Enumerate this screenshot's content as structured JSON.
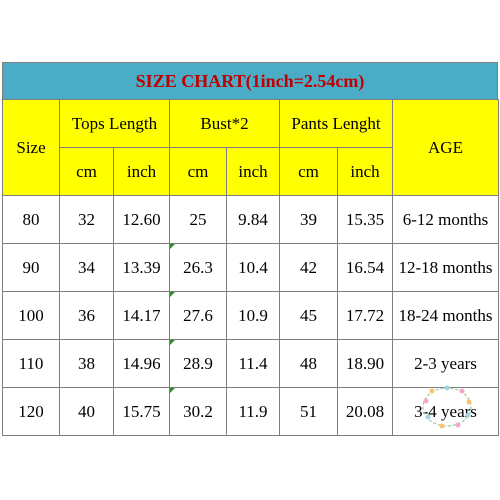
{
  "title": "SIZE CHART(1inch=2.54cm)",
  "headers": {
    "size": "Size",
    "tops_length": "Tops Length",
    "bust": "Bust*2",
    "pants_length": "Pants Lenght",
    "age": "AGE",
    "cm": "cm",
    "inch": "inch"
  },
  "rows": [
    {
      "size": "80",
      "tops_cm": "32",
      "tops_in": "12.60",
      "bust_cm": "25",
      "bust_in": "9.84",
      "pants_cm": "39",
      "pants_in": "15.35",
      "age": "6-12 months"
    },
    {
      "size": "90",
      "tops_cm": "34",
      "tops_in": "13.39",
      "bust_cm": "26.3",
      "bust_in": "10.4",
      "pants_cm": "42",
      "pants_in": "16.54",
      "age": "12-18 months"
    },
    {
      "size": "100",
      "tops_cm": "36",
      "tops_in": "14.17",
      "bust_cm": "27.6",
      "bust_in": "10.9",
      "pants_cm": "45",
      "pants_in": "17.72",
      "age": "18-24 months"
    },
    {
      "size": "110",
      "tops_cm": "38",
      "tops_in": "14.96",
      "bust_cm": "28.9",
      "bust_in": "11.4",
      "pants_cm": "48",
      "pants_in": "18.90",
      "age": "2-3 years"
    },
    {
      "size": "120",
      "tops_cm": "40",
      "tops_in": "15.75",
      "bust_cm": "30.2",
      "bust_in": "11.9",
      "pants_cm": "51",
      "pants_in": "20.08",
      "age": "3-4 years"
    }
  ],
  "colors": {
    "title_bg": "#4aacc6",
    "title_text": "#c00000",
    "header_bg": "#ffff00",
    "grid": "#7f7f7f"
  }
}
